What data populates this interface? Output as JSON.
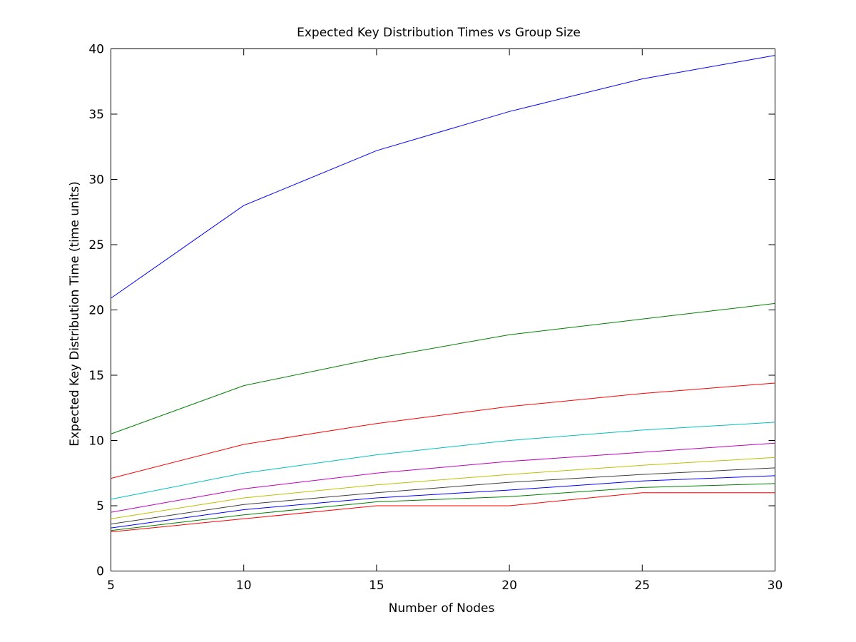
{
  "chart_data": {
    "type": "line",
    "title": "Expected Key Distribution Times vs Group Size",
    "xlabel": "Number of Nodes",
    "ylabel": "Expected Key Distribution Time (time units)",
    "xlim": [
      5,
      30
    ],
    "ylim": [
      0,
      40
    ],
    "xticks": [
      5,
      10,
      15,
      20,
      25,
      30
    ],
    "yticks": [
      0,
      5,
      10,
      15,
      20,
      25,
      30,
      35,
      40
    ],
    "grid": false,
    "x": [
      5,
      10,
      15,
      20,
      25,
      30
    ],
    "series": [
      {
        "color": "#0000ff",
        "values": [
          20.9,
          28.0,
          32.2,
          35.2,
          37.7,
          39.5
        ]
      },
      {
        "color": "#008000",
        "values": [
          10.5,
          14.2,
          16.3,
          18.1,
          19.3,
          20.5
        ]
      },
      {
        "color": "#ff0000",
        "values": [
          7.1,
          9.7,
          11.3,
          12.6,
          13.6,
          14.4
        ]
      },
      {
        "color": "#00bfbf",
        "values": [
          5.5,
          7.5,
          8.9,
          10.0,
          10.8,
          11.4
        ]
      },
      {
        "color": "#bf00bf",
        "values": [
          4.5,
          6.3,
          7.5,
          8.4,
          9.1,
          9.8
        ]
      },
      {
        "color": "#bfbf00",
        "values": [
          4.0,
          5.6,
          6.6,
          7.4,
          8.1,
          8.7
        ]
      },
      {
        "color": "#3f3f3f",
        "values": [
          3.6,
          5.1,
          6.0,
          6.8,
          7.4,
          7.9
        ]
      },
      {
        "color": "#0000ff",
        "values": [
          3.3,
          4.7,
          5.6,
          6.2,
          6.9,
          7.3
        ]
      },
      {
        "color": "#008000",
        "values": [
          3.1,
          4.3,
          5.3,
          5.7,
          6.4,
          6.7
        ]
      },
      {
        "color": "#ff0000",
        "values": [
          3.0,
          4.0,
          5.0,
          5.0,
          6.0,
          6.0
        ]
      }
    ]
  }
}
